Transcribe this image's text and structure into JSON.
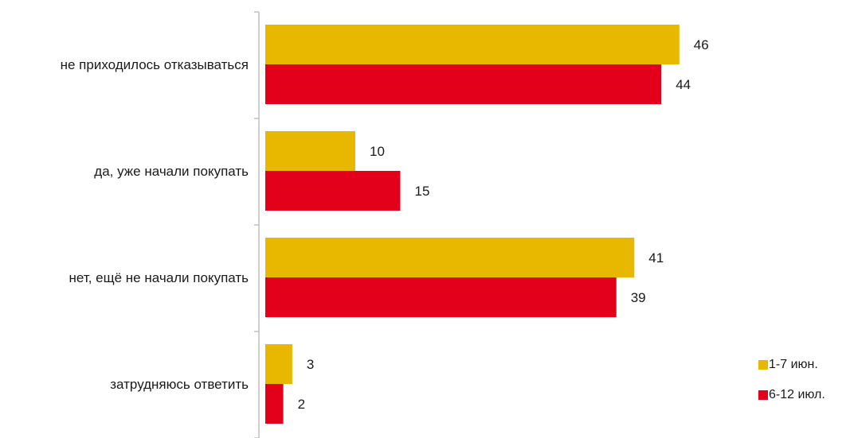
{
  "chart_data": {
    "type": "bar",
    "orientation": "horizontal",
    "categories": [
      "не приходилось отказываться",
      "да, уже начали покупать",
      "нет, ещё не начали покупать",
      "затрудняюсь ответить"
    ],
    "series": [
      {
        "name": "1-7 июн.",
        "color": "#E8B800",
        "values": [
          46,
          10,
          41,
          3
        ]
      },
      {
        "name": "6-12 июл.",
        "color": "#E2001A",
        "values": [
          44,
          15,
          39,
          2
        ]
      }
    ],
    "xlim": [
      0,
      50
    ],
    "grid": false,
    "legend": "bottom-right",
    "data_labels": true
  }
}
